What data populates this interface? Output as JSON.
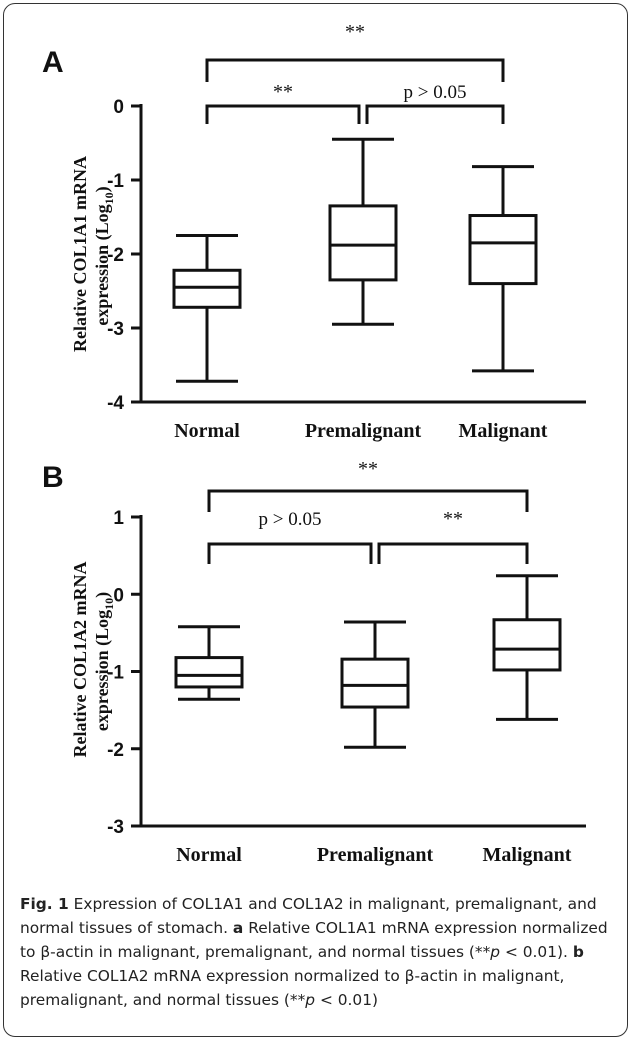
{
  "chart_data": [
    {
      "type": "boxplot",
      "panel_label": "A",
      "ylabel_main": "Relative COL1A1 mRNA",
      "ylabel_expr": "expression (Log",
      "ylabel_sub": "10",
      "ylabel_close": ")",
      "ylim": [
        -4,
        0
      ],
      "yticks": [
        "0",
        "-1",
        "-2",
        "-3",
        "-4"
      ],
      "categories": [
        "Normal",
        "Premalignant",
        "Malignant"
      ],
      "boxes": [
        {
          "category": "Normal",
          "min": -3.72,
          "q1": -2.72,
          "median": -2.45,
          "q3": -2.22,
          "max": -1.75
        },
        {
          "category": "Premalignant",
          "min": -2.95,
          "q1": -2.35,
          "median": -1.88,
          "q3": -1.35,
          "max": -0.45
        },
        {
          "category": "Malignant",
          "min": -3.58,
          "q1": -2.4,
          "median": -1.85,
          "q3": -1.48,
          "max": -0.82
        }
      ],
      "comparisons": [
        {
          "pair": [
            "Normal",
            "Malignant"
          ],
          "label": "**"
        },
        {
          "pair": [
            "Normal",
            "Premalignant"
          ],
          "label": "**"
        },
        {
          "pair": [
            "Premalignant",
            "Malignant"
          ],
          "label": "p > 0.05"
        }
      ]
    },
    {
      "type": "boxplot",
      "panel_label": "B",
      "ylabel_main": "Relative COL1A2 mRNA",
      "ylabel_expr": "expression (Log",
      "ylabel_sub": "10",
      "ylabel_close": ")",
      "ylim": [
        -3,
        1
      ],
      "yticks": [
        "1",
        "0",
        "-1",
        "-2",
        "-3"
      ],
      "categories": [
        "Normal",
        "Premalignant",
        "Malignant"
      ],
      "boxes": [
        {
          "category": "Normal",
          "min": -1.36,
          "q1": -1.2,
          "median": -1.05,
          "q3": -0.82,
          "max": -0.42
        },
        {
          "category": "Premalignant",
          "min": -1.98,
          "q1": -1.46,
          "median": -1.18,
          "q3": -0.84,
          "max": -0.36
        },
        {
          "category": "Malignant",
          "min": -1.62,
          "q1": -0.98,
          "median": -0.71,
          "q3": -0.33,
          "max": 0.24
        }
      ],
      "comparisons": [
        {
          "pair": [
            "Normal",
            "Malignant"
          ],
          "label": "**"
        },
        {
          "pair": [
            "Normal",
            "Premalignant"
          ],
          "label": "p > 0.05"
        },
        {
          "pair": [
            "Premalignant",
            "Malignant"
          ],
          "label": "**"
        }
      ]
    }
  ],
  "caption": {
    "fig_label": "Fig. 1",
    "title": " Expression of COL1A1 and COL1A2 in malignant, premalignant, and normal tissues of stomach. ",
    "a_label": "a",
    "a_text": " Relative COL1A1 mRNA expression normalized to β-actin in malignant, premalignant, and normal tissues (**",
    "b_label": "b",
    "b_text": " Relative COL1A2 mRNA expression normalized to β-actin in malignant, premalignant, and normal tissues (**",
    "p_symbol": "p",
    "p_tail": " < 0.01)",
    "p_tail_a": " < 0.01). "
  }
}
